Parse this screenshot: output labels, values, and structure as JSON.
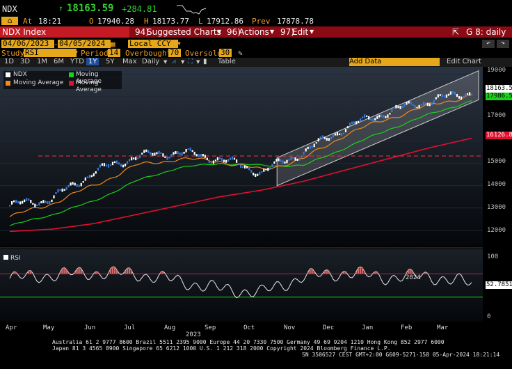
{
  "quote": {
    "ticker": "NDX",
    "arrow": "↑",
    "last": "18163.59",
    "change": "+284.81",
    "at_label": "At",
    "time": "18:21",
    "open_label": "O",
    "open": "17940.28",
    "high_label": "H",
    "high": "18173.77",
    "low_label": "L",
    "low": "17912.86",
    "prev_label": "Prev",
    "prev": "17878.78"
  },
  "toolbar": {
    "security": "NDX Index",
    "suggested_num": "94)",
    "suggested": "Suggested Charts",
    "actions_num": "96)",
    "actions": "Actions",
    "edit_num": "97)",
    "edit": "Edit",
    "layout_label": "G 8: daily"
  },
  "params": {
    "start_date": "04/06/2023",
    "end_date": "04/05/2024",
    "currency": "Local CCY",
    "study_label": "Study",
    "study": "RSI",
    "period_label": "Period",
    "period": "14",
    "overbought_label": "Overbought",
    "overbought": "70",
    "oversold_label": "Oversold",
    "oversold": "30"
  },
  "periods": {
    "items": [
      "1D",
      "3D",
      "1M",
      "6M",
      "YTD",
      "1Y",
      "5Y",
      "Max"
    ],
    "selected": "1Y",
    "frequency": "Daily",
    "table": "Table",
    "add_data": "Add Data",
    "edit_chart": "Edit Chart"
  },
  "legend": {
    "items": [
      {
        "name": "NDX",
        "color": "#ffffff"
      },
      {
        "name": "Moving Average",
        "color": "#19d219"
      },
      {
        "name": "Moving Average",
        "color": "#f08a1c"
      },
      {
        "name": "Moving Average",
        "color": "#e01030"
      }
    ]
  },
  "chart_data": [
    {
      "type": "line",
      "x": [
        "2023-04",
        "2023-05",
        "2023-06",
        "2023-07",
        "2023-08",
        "2023-09",
        "2023-10",
        "2023-11",
        "2023-12",
        "2024-01",
        "2024-02",
        "2024-03"
      ],
      "series": [
        {
          "name": "NDX",
          "values": [
            13100,
            13400,
            14600,
            15300,
            15500,
            15200,
            14600,
            15500,
            16600,
            17300,
            17800,
            18200
          ]
        },
        {
          "name": "Moving Average",
          "values": [
            12600,
            13200,
            14000,
            14900,
            15200,
            15100,
            14700,
            15200,
            16300,
            17000,
            17600,
            18050
          ]
        },
        {
          "name": "Moving Average",
          "values": [
            12200,
            12700,
            13300,
            14200,
            14800,
            15000,
            14900,
            14900,
            15700,
            16500,
            17200,
            17800
          ]
        },
        {
          "name": "Moving Average",
          "values": [
            11950,
            12050,
            12300,
            12700,
            13100,
            13500,
            13800,
            14200,
            14700,
            15200,
            15700,
            16126.82
          ]
        }
      ],
      "ylim": [
        11400,
        19200
      ],
      "yticks": [
        "19000",
        "18000",
        "17000",
        "16000",
        "15000",
        "14000",
        "13000",
        "12000"
      ],
      "xticks": [
        "Apr",
        "May",
        "Jun",
        "Jul",
        "Aug",
        "Sep",
        "Oct",
        "Nov",
        "Dec",
        "Jan",
        "Feb",
        "Mar"
      ],
      "year_labels": [
        "2023",
        "2024"
      ],
      "last_tags": [
        "18163.59",
        "17986.52",
        "16126.82"
      ],
      "reference_line": 15330
    },
    {
      "type": "line",
      "title": "RSI",
      "series": [
        {
          "name": "RSI",
          "values": [
            62,
            68,
            72,
            70,
            58,
            44,
            38,
            65,
            72,
            64,
            66,
            52.7851
          ]
        }
      ],
      "ylim": [
        0,
        100
      ],
      "yticks": [
        "100",
        "50",
        "0"
      ],
      "overbought": 70,
      "oversold": 30,
      "last_tag": "52.7851"
    }
  ],
  "footer": {
    "line1": "Australia 61 2 9777 8600 Brazil 5511 2395 9000 Europe 44 20 7330 7500 Germany 49 69 9204 1210 Hong Kong 852 2977 6000",
    "line2": "Japan 81 3 4565 8900         Singapore 65 6212 1000         U.S. 1 212 318 2000         Copyright 2024 Bloomberg Finance L.P.",
    "line3": "SN 3506527 CEST GMT+2:00 G609-5271-158 05-Apr-2024 18:21:14"
  },
  "colors": {
    "amber": "#f0a020",
    "price_green": "#2fd12f",
    "ma_green": "#19d219",
    "ma_orange": "#f08a1c",
    "ma_red": "#e01030",
    "toolbar_red": "#8b0a14",
    "selected_blue": "#1e4f9c"
  }
}
